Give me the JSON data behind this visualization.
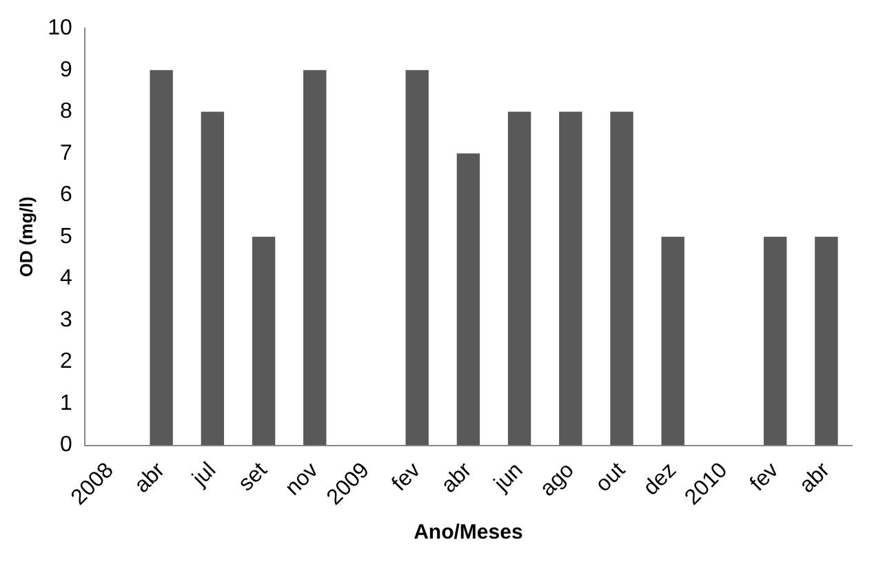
{
  "chart_data": {
    "type": "bar",
    "xlabel": "Ano/Meses",
    "ylabel": "OD (mg/l)",
    "categories": [
      "2008",
      "abr",
      "jul",
      "set",
      "nov",
      "2009",
      "fev",
      "abr",
      "jun",
      "ago",
      "out",
      "dez",
      "2010",
      "fev",
      "abr"
    ],
    "values": [
      null,
      9,
      8,
      5,
      9,
      null,
      9,
      7,
      8,
      8,
      8,
      5,
      null,
      5,
      5
    ],
    "color": "#595959",
    "ylim": [
      0,
      10
    ],
    "yticks": [
      0,
      1,
      2,
      3,
      4,
      5,
      6,
      7,
      8,
      9,
      10
    ],
    "grid": false,
    "legend": false
  }
}
